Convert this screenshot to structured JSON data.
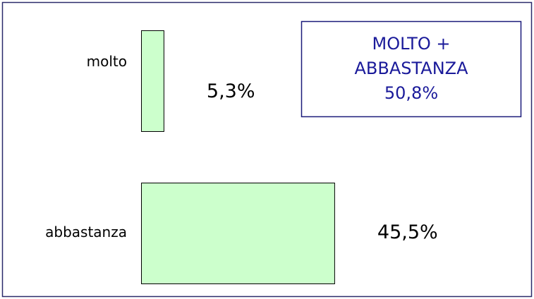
{
  "chart_data": {
    "type": "hbar",
    "categories": [
      "molto",
      "abbastanza"
    ],
    "values": [
      5.3,
      45.5
    ],
    "value_labels": [
      "5,3%",
      "45,5%"
    ],
    "color": "#ccffcc",
    "annotation": [
      "MOLTO +",
      "ABBASTANZA",
      "50,8%"
    ]
  }
}
